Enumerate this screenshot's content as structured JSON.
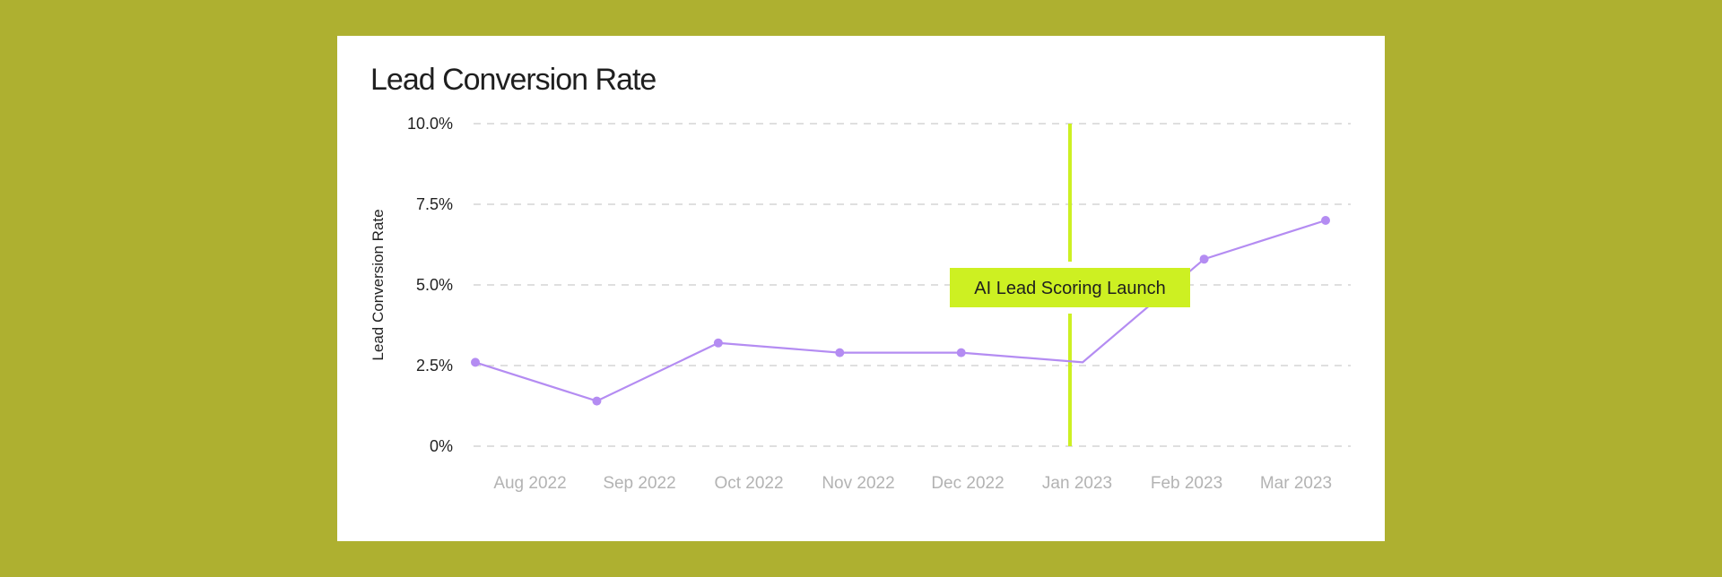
{
  "page": {
    "background": "#aeb030",
    "card_background": "#ffffff"
  },
  "chart_data": {
    "type": "line",
    "title": "Lead Conversion Rate",
    "ylabel": "Lead Conversion Rate",
    "xlabel": "",
    "categories": [
      "Aug 2022",
      "Sep 2022",
      "Oct 2022",
      "Nov 2022",
      "Dec 2022",
      "Jan 2023",
      "Feb 2023",
      "Mar 2023"
    ],
    "series": [
      {
        "values": [
          2.6,
          1.4,
          3.2,
          2.9,
          2.9,
          2.6,
          5.8,
          7.0
        ]
      }
    ],
    "ylim": [
      0,
      10
    ],
    "y_ticks": [
      0,
      2.5,
      5,
      7.5,
      10
    ],
    "y_tick_labels": [
      "0%",
      "2.5%",
      "5.0%",
      "7.5%",
      "10.0%"
    ],
    "grid": "horizontal-dashed",
    "line_color": "#b48cf2",
    "annotation": {
      "label": "AI Lead Scoring Launch",
      "at_category": "Jan 2023",
      "color": "#cdf022",
      "text_color": "#1f1f1f"
    },
    "gridline_color": "#cccccc",
    "tick_label_color": "#b3b3b3",
    "axis_text_color": "#222222"
  }
}
